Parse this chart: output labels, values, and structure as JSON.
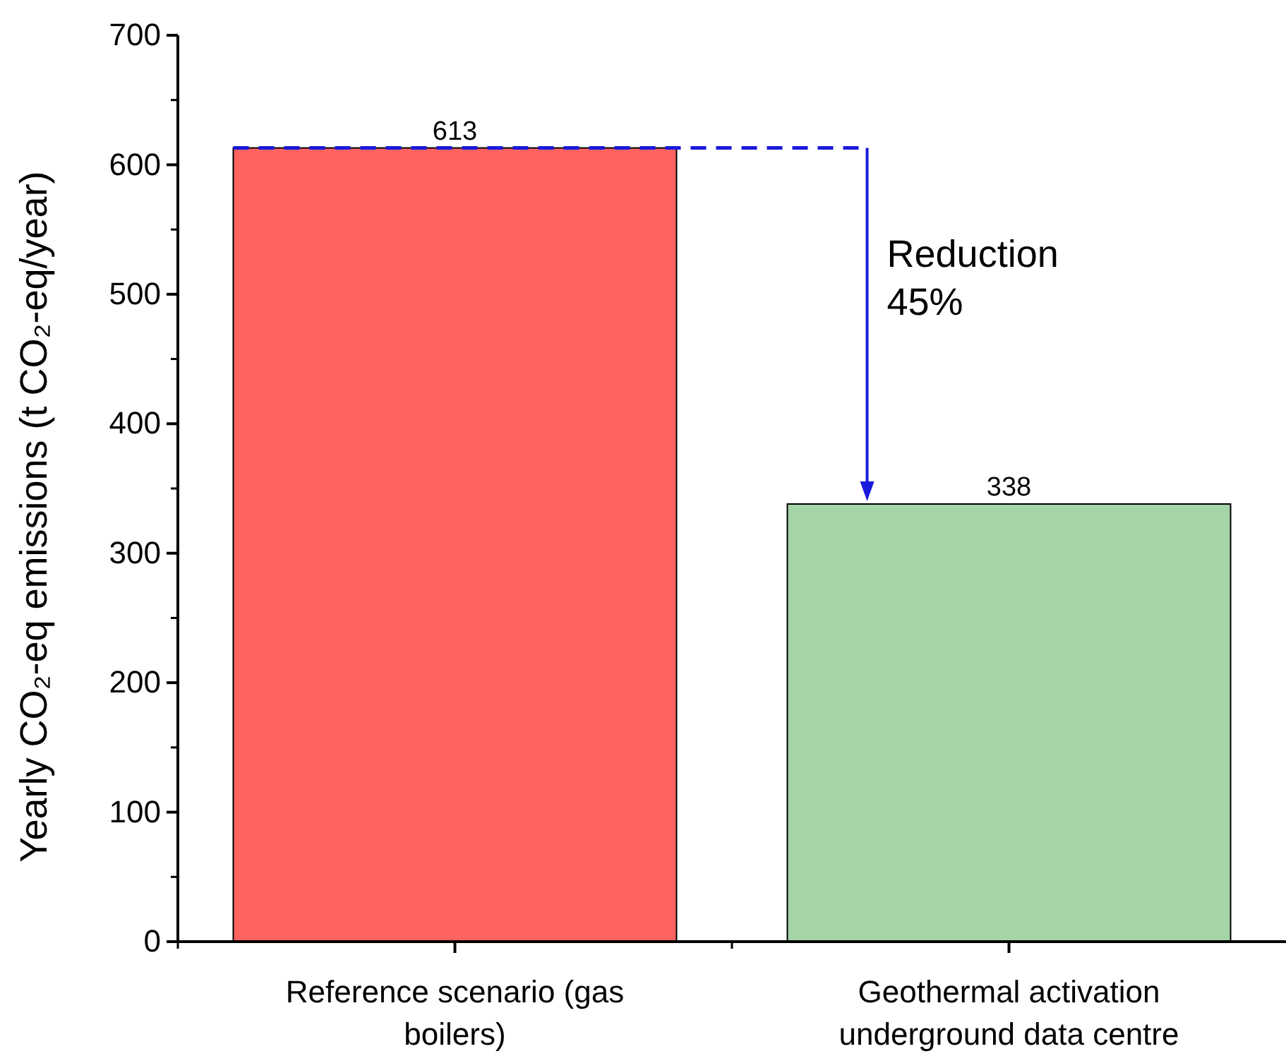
{
  "chart_data": {
    "type": "bar",
    "ylabel": "Yearly CO₂-eq emissions (t CO₂-eq/year)",
    "categories": [
      "Reference scenario (gas boilers)",
      "Geothermal activation underground data centre"
    ],
    "values": [
      613,
      338
    ],
    "colors": [
      "#ff6361",
      "#a5d4a8"
    ],
    "ylim": [
      0,
      700
    ],
    "yticks": [
      0,
      100,
      200,
      300,
      400,
      500,
      600,
      700
    ],
    "grid": false,
    "data_labels": true,
    "ref_lines": [
      {
        "axis": "y",
        "value": 613,
        "color": "#1a1adc",
        "line_style": "dashed"
      }
    ],
    "annotations": [
      "Reduction\n45%"
    ]
  }
}
